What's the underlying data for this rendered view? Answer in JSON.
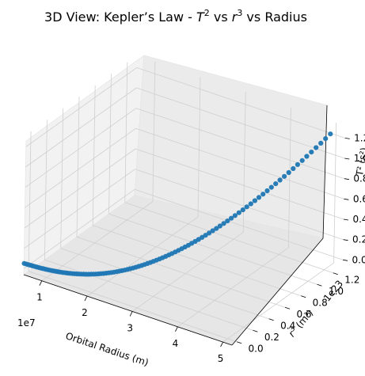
{
  "chart_data": {
    "type": "scatter3d",
    "title_parts": {
      "prefix": "3D View: Kepler’s Law - ",
      "t": "T",
      "t_exp": "2",
      "vs1": " vs ",
      "r": "r",
      "r_exp": "3",
      "suffix": " vs Radius"
    },
    "xlabel": "Orbital Radius (m)",
    "ylabel_parts": {
      "r": "r",
      "exp": "3",
      "unit": " (m³)"
    },
    "zlabel_text": "T² (s²)",
    "x_offset": "1e7",
    "y_offset": "1e23",
    "xlim": [
      0.6,
      5.2
    ],
    "ylim": [
      -0.06,
      1.32
    ],
    "zlim": [
      -0.06,
      1.32
    ],
    "x_ticks": [
      "1",
      "2",
      "3",
      "4",
      "5"
    ],
    "y_ticks": [
      "0.0",
      "0.2",
      "0.4",
      "0.6",
      "0.8",
      "1.0",
      "1.2"
    ],
    "z_ticks": [
      "0.0",
      "0.2",
      "0.4",
      "0.6",
      "0.8",
      "1.0",
      "1.2"
    ],
    "point_color": "#1f77b4",
    "series": [
      {
        "x_start": 0.5,
        "x_end": 5.0,
        "count": 100,
        "y_rule": "x^3 / 100 (units of 1e23, with x in units of 1e7)",
        "z_rule": "proportional to y (T^2 ∝ r^3), max 1.25"
      }
    ],
    "grid": true
  }
}
